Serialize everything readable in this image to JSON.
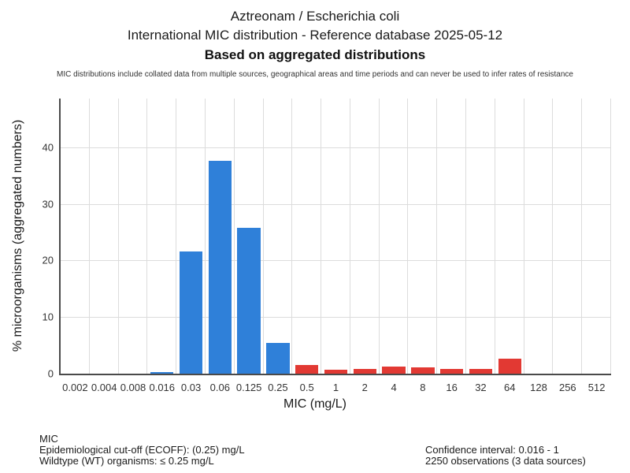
{
  "header": {
    "title_line1": "Aztreonam / Escherichia coli",
    "title_line2": "International MIC distribution - Reference database 2025-05-12",
    "title_line3": "Based on aggregated distributions",
    "disclaimer": "MIC distributions include collated data from multiple sources, geographical areas and time periods and can never be used to infer rates of resistance"
  },
  "chart_data": {
    "type": "bar",
    "categories": [
      "0.002",
      "0.004",
      "0.008",
      "0.016",
      "0.03",
      "0.06",
      "0.125",
      "0.25",
      "0.5",
      "1",
      "2",
      "4",
      "8",
      "16",
      "32",
      "64",
      "128",
      "256",
      "512"
    ],
    "values": [
      0,
      0,
      0,
      0.35,
      21.6,
      37.6,
      25.8,
      5.4,
      1.55,
      0.7,
      0.9,
      1.3,
      1.05,
      0.9,
      0.9,
      2.6,
      0,
      0,
      0
    ],
    "xlabel": "MIC (mg/L)",
    "ylabel": "% microorganisms (aggregated numbers)",
    "ylim": [
      0,
      48.6
    ],
    "yticks": [
      0,
      10,
      20,
      30,
      40
    ],
    "grid": true,
    "legend": "none",
    "wildtype_color": "#2F80D9",
    "non_wildtype_color": "#E23933",
    "wildtype_last_category": "0.25",
    "grid_color": "#dcdcdc",
    "axis_color": "#4a4a4a"
  },
  "footer": {
    "left_line1": "MIC",
    "left_line2": "Epidemiological cut-off (ECOFF): (0.25) mg/L",
    "left_line3": "Wildtype (WT) organisms: ≤ 0.25 mg/L",
    "right_line1": "Confidence interval: 0.016 - 1",
    "right_line2": "2250 observations (3 data sources)"
  }
}
